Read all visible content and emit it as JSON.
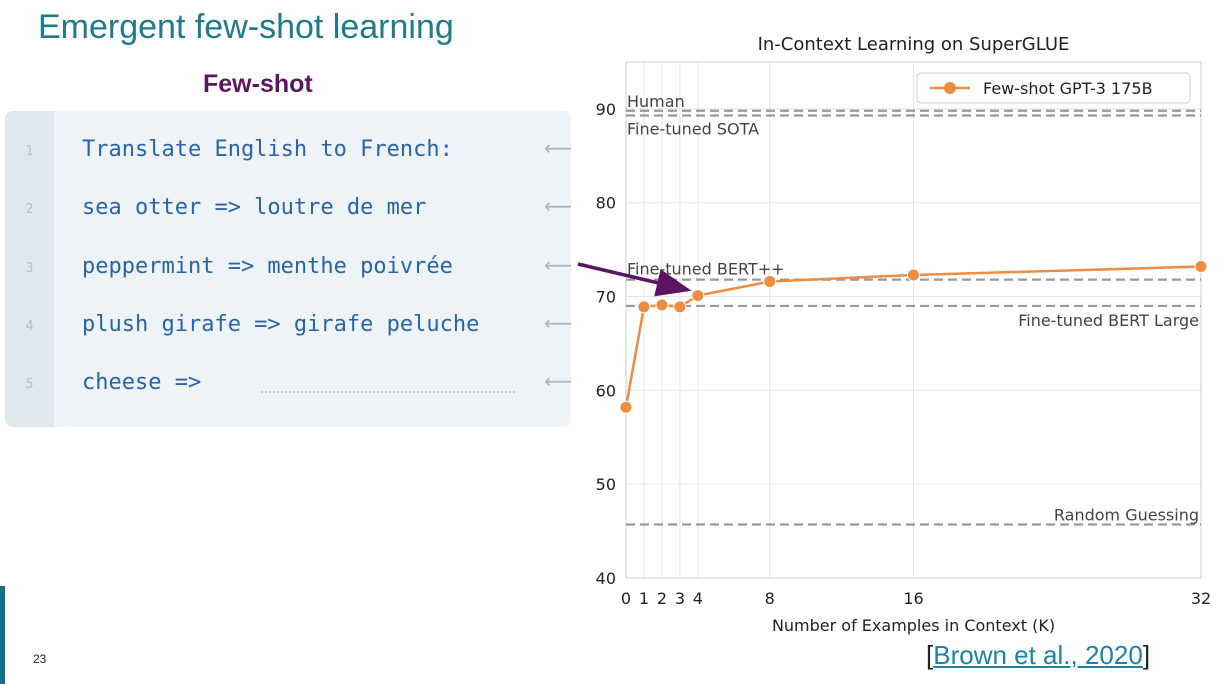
{
  "slide": {
    "title": "Emergent few-shot learning",
    "subtitle": "Few-shot",
    "page_number": "23",
    "citation": {
      "open": "[",
      "text": "Brown et al., 2020",
      "close": "]"
    }
  },
  "prompt": {
    "line_numbers": [
      "1",
      "2",
      "3",
      "4",
      "5"
    ],
    "lines": [
      "Translate English to French:",
      "sea otter => loutre de mer",
      "peppermint => menthe poivrée",
      "plush girafe => girafe peluche",
      "cheese =>"
    ],
    "arrow_glyph": "⟵"
  },
  "chart_data": {
    "type": "line",
    "title": "In-Context Learning on SuperGLUE",
    "xlabel": "Number of Examples in Context (K)",
    "ylabel": "",
    "xticks": [
      0,
      1,
      2,
      3,
      4,
      8,
      16,
      32
    ],
    "yticks": [
      40,
      50,
      60,
      70,
      80,
      90
    ],
    "xlim": [
      0,
      32
    ],
    "ylim": [
      40,
      95
    ],
    "grid": true,
    "legend_position": "top-right",
    "series": [
      {
        "name": "Few-shot GPT-3 175B",
        "x": [
          0,
          1,
          2,
          3,
          4,
          8,
          16,
          32
        ],
        "values": [
          58.2,
          68.9,
          69.1,
          68.9,
          70.1,
          71.6,
          72.3,
          73.2
        ],
        "color": "#ee8d3f"
      }
    ],
    "reference_lines": [
      {
        "label": "Human",
        "value": 89.8
      },
      {
        "label": "Fine-tuned SOTA",
        "value": 89.3
      },
      {
        "label": "Fine-tuned BERT++",
        "value": 71.8
      },
      {
        "label": "Fine-tuned BERT Large",
        "value": 69.0
      },
      {
        "label": "Random Guessing",
        "value": 45.7
      }
    ],
    "pointer_arrow_color": "#5b1462"
  }
}
